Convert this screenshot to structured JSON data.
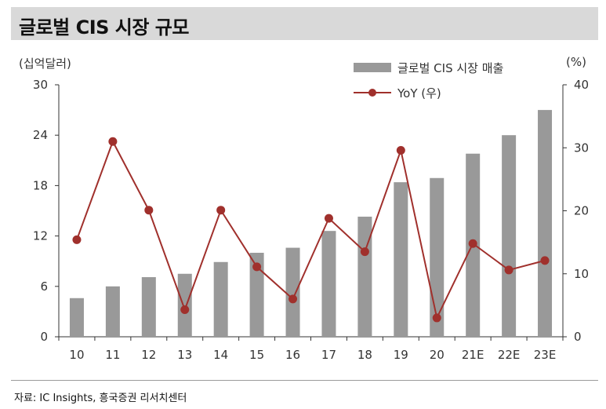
{
  "header": {
    "title": "글로벌 CIS 시장 규모"
  },
  "source": "자료: IC Insights, 흥국증권 리서치센터",
  "colors": {
    "bar": "#999999",
    "line": "#a0302c",
    "axis": "#333333",
    "title_bg": "#d9d9d9"
  },
  "chart_data": {
    "type": "bar",
    "categories": [
      "10",
      "11",
      "12",
      "13",
      "14",
      "15",
      "16",
      "17",
      "18",
      "19",
      "20",
      "21E",
      "22E",
      "23E"
    ],
    "series": [
      {
        "name": "글로벌 CIS 시장 매출",
        "type": "bar",
        "axis": "left",
        "values": [
          4.6,
          6.0,
          7.1,
          7.5,
          8.9,
          10.0,
          10.6,
          12.6,
          14.3,
          18.4,
          18.9,
          21.8,
          24.0,
          27.0
        ]
      },
      {
        "name": "YoY (우)",
        "type": "line",
        "axis": "right",
        "values": [
          15.4,
          31.0,
          20.1,
          4.3,
          20.1,
          11.1,
          6.0,
          18.8,
          13.5,
          29.6,
          3.0,
          14.8,
          10.6,
          12.1
        ]
      }
    ],
    "y_left": {
      "label": "(십억달러)",
      "min": 0,
      "max": 30,
      "ticks": [
        0,
        6,
        12,
        18,
        24,
        30
      ]
    },
    "y_right": {
      "label": "(%)",
      "min": 0,
      "max": 40,
      "ticks": [
        0,
        10,
        20,
        30,
        40
      ]
    },
    "legend_position": "top-right",
    "grid": false
  }
}
